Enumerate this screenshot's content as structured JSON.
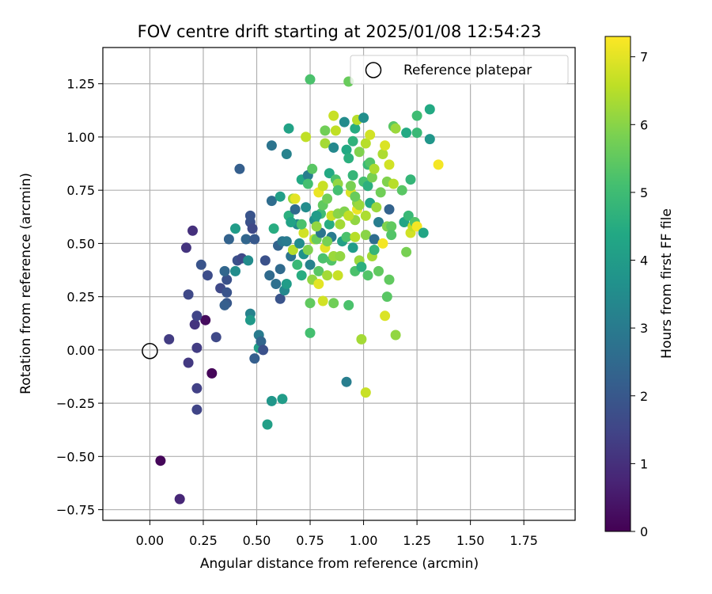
{
  "chart_data": {
    "type": "scatter",
    "title": "FOV centre drift starting at 2025/01/08 12:54:23",
    "xlabel": "Angular distance from reference (arcmin)",
    "ylabel": "Rotation from reference (arcmin)",
    "xlim": [
      -0.22,
      1.99
    ],
    "ylim": [
      -0.8,
      1.42
    ],
    "x_ticks": [
      "0.00",
      "0.25",
      "0.50",
      "0.75",
      "1.00",
      "1.25",
      "1.50",
      "1.75"
    ],
    "x_tick_values": [
      0,
      0.25,
      0.5,
      0.75,
      1.0,
      1.25,
      1.5,
      1.75
    ],
    "y_ticks": [
      "−0.75",
      "−0.50",
      "−0.25",
      "0.00",
      "0.25",
      "0.50",
      "0.75",
      "1.00",
      "1.25"
    ],
    "y_tick_values": [
      -0.75,
      -0.5,
      -0.25,
      0,
      0.25,
      0.5,
      0.75,
      1.0,
      1.25
    ],
    "grid": true,
    "legend": {
      "label": "Reference platepar",
      "placement": "top-right"
    },
    "reference": {
      "x": 0.0,
      "y": 0.0
    },
    "colorbar": {
      "label": "Hours from first FF file",
      "range": [
        0,
        7.3
      ],
      "ticks": [
        "0",
        "1",
        "2",
        "3",
        "4",
        "5",
        "6",
        "7"
      ],
      "tick_values": [
        0,
        1,
        2,
        3,
        4,
        5,
        6,
        7
      ],
      "colormap": "viridis"
    },
    "points": [
      [
        0.05,
        -0.52,
        0.1
      ],
      [
        0.14,
        -0.7,
        0.8
      ],
      [
        0.09,
        0.05,
        1.3
      ],
      [
        0.18,
        -0.06,
        1.2
      ],
      [
        0.22,
        -0.18,
        1.4
      ],
      [
        0.22,
        -0.28,
        1.5
      ],
      [
        0.22,
        0.01,
        1.3
      ],
      [
        0.21,
        0.12,
        1.1
      ],
      [
        0.26,
        0.14,
        0.2
      ],
      [
        0.29,
        -0.11,
        0.1
      ],
      [
        0.31,
        0.06,
        1.6
      ],
      [
        0.22,
        0.16,
        1.5
      ],
      [
        0.18,
        0.26,
        1.6
      ],
      [
        0.17,
        0.48,
        1.1
      ],
      [
        0.2,
        0.56,
        1.0
      ],
      [
        0.24,
        0.4,
        1.9
      ],
      [
        0.27,
        0.35,
        1.7
      ],
      [
        0.33,
        0.29,
        1.6
      ],
      [
        0.36,
        0.22,
        2.0
      ],
      [
        0.36,
        0.33,
        1.8
      ],
      [
        0.36,
        0.27,
        1.9
      ],
      [
        0.35,
        0.21,
        2.2
      ],
      [
        0.35,
        0.37,
        2.4
      ],
      [
        0.37,
        0.52,
        2.3
      ],
      [
        0.4,
        0.37,
        3.5
      ],
      [
        0.4,
        0.57,
        4.0
      ],
      [
        0.41,
        0.42,
        1.8
      ],
      [
        0.43,
        0.43,
        1.6
      ],
      [
        0.45,
        0.52,
        2.4
      ],
      [
        0.46,
        0.42,
        3.5
      ],
      [
        0.42,
        0.85,
        2.2
      ],
      [
        0.47,
        0.6,
        1.8
      ],
      [
        0.47,
        0.63,
        1.9
      ],
      [
        0.48,
        0.57,
        1.6
      ],
      [
        0.49,
        0.52,
        2.0
      ],
      [
        0.47,
        0.17,
        3.2
      ],
      [
        0.47,
        0.14,
        3.9
      ],
      [
        0.49,
        -0.04,
        2.2
      ],
      [
        0.51,
        0.07,
        3.0
      ],
      [
        0.51,
        0.01,
        4.1
      ],
      [
        0.52,
        0.04,
        2.4
      ],
      [
        0.53,
        0.0,
        1.8
      ],
      [
        0.54,
        0.42,
        1.8
      ],
      [
        0.56,
        0.35,
        2.5
      ],
      [
        0.57,
        0.7,
        2.6
      ],
      [
        0.57,
        0.96,
        2.8
      ],
      [
        0.58,
        0.57,
        4.5
      ],
      [
        0.59,
        0.31,
        2.7
      ],
      [
        0.6,
        0.49,
        2.3
      ],
      [
        0.61,
        0.38,
        2.5
      ],
      [
        0.61,
        0.72,
        4.1
      ],
      [
        0.61,
        0.24,
        1.9
      ],
      [
        0.62,
        0.51,
        2.9
      ],
      [
        0.63,
        0.28,
        3.4
      ],
      [
        0.64,
        0.31,
        4.0
      ],
      [
        0.64,
        0.51,
        3.0
      ],
      [
        0.64,
        0.92,
        3.2
      ],
      [
        0.65,
        1.04,
        4.2
      ],
      [
        0.65,
        0.63,
        4.6
      ],
      [
        0.66,
        0.44,
        2.8
      ],
      [
        0.67,
        0.47,
        6.5
      ],
      [
        0.67,
        0.71,
        6.2
      ],
      [
        0.68,
        0.66,
        2.5
      ],
      [
        0.68,
        0.71,
        7.0
      ],
      [
        0.69,
        0.59,
        3.4
      ],
      [
        0.7,
        0.5,
        3.5
      ],
      [
        0.71,
        0.8,
        4.4
      ],
      [
        0.71,
        0.35,
        4.5
      ],
      [
        0.72,
        0.55,
        6.8
      ],
      [
        0.73,
        1.0,
        6.6
      ],
      [
        0.72,
        0.45,
        3.7
      ],
      [
        0.73,
        0.67,
        3.5
      ],
      [
        0.74,
        0.82,
        3.1
      ],
      [
        0.74,
        0.78,
        5.1
      ],
      [
        0.75,
        0.4,
        3.2
      ],
      [
        0.75,
        0.22,
        5.5
      ],
      [
        0.75,
        0.08,
        5.1
      ],
      [
        0.75,
        1.27,
        5.2
      ],
      [
        0.76,
        0.33,
        6.1
      ],
      [
        0.76,
        0.85,
        5.4
      ],
      [
        0.77,
        0.61,
        3.6
      ],
      [
        0.77,
        0.52,
        6.6
      ],
      [
        0.78,
        0.52,
        5.6
      ],
      [
        0.79,
        0.37,
        5.4
      ],
      [
        0.79,
        0.31,
        7.0
      ],
      [
        0.79,
        0.74,
        7.1
      ],
      [
        0.8,
        0.64,
        5.0
      ],
      [
        0.8,
        0.55,
        2.8
      ],
      [
        0.81,
        0.68,
        5.5
      ],
      [
        0.81,
        0.77,
        6.7
      ],
      [
        0.81,
        0.43,
        5.2
      ],
      [
        0.81,
        0.23,
        6.8
      ],
      [
        0.82,
        0.97,
        6.3
      ],
      [
        0.82,
        1.03,
        5.7
      ],
      [
        0.82,
        0.48,
        7.0
      ],
      [
        0.83,
        0.35,
        6.3
      ],
      [
        0.83,
        0.71,
        5.7
      ],
      [
        0.84,
        0.59,
        4.5
      ],
      [
        0.84,
        0.83,
        4.4
      ],
      [
        0.85,
        0.63,
        6.7
      ],
      [
        0.85,
        0.53,
        3.0
      ],
      [
        0.85,
        0.42,
        5.3
      ],
      [
        0.86,
        0.44,
        6.2
      ],
      [
        0.86,
        0.95,
        3.4
      ],
      [
        0.86,
        1.1,
        6.7
      ],
      [
        0.86,
        0.22,
        5.7
      ],
      [
        0.87,
        0.8,
        5.2
      ],
      [
        0.87,
        1.03,
        6.6
      ],
      [
        0.88,
        0.35,
        6.7
      ],
      [
        0.88,
        0.64,
        6.0
      ],
      [
        0.88,
        0.78,
        6.1
      ],
      [
        0.89,
        0.59,
        6.3
      ],
      [
        0.9,
        0.51,
        4.1
      ],
      [
        0.91,
        1.07,
        3.5
      ],
      [
        0.91,
        0.65,
        5.9
      ],
      [
        0.92,
        0.53,
        5.2
      ],
      [
        0.92,
        0.94,
        4.4
      ],
      [
        0.92,
        -0.15,
        3.1
      ],
      [
        0.93,
        0.21,
        5.2
      ],
      [
        0.93,
        1.26,
        5.6
      ],
      [
        0.93,
        0.9,
        4.6
      ],
      [
        0.94,
        0.74,
        6.9
      ],
      [
        0.94,
        0.77,
        5.8
      ],
      [
        0.95,
        0.48,
        4.0
      ],
      [
        0.95,
        0.82,
        4.8
      ],
      [
        0.95,
        0.98,
        4.7
      ],
      [
        0.96,
        0.61,
        6.1
      ],
      [
        0.96,
        0.37,
        5.2
      ],
      [
        0.96,
        1.04,
        4.5
      ],
      [
        0.96,
        0.53,
        6.5
      ],
      [
        0.97,
        0.66,
        7.1
      ],
      [
        0.97,
        0.69,
        6.0
      ],
      [
        0.97,
        1.08,
        6.5
      ],
      [
        0.98,
        0.93,
        5.9
      ],
      [
        0.98,
        0.68,
        6.2
      ],
      [
        0.98,
        0.42,
        6.2
      ],
      [
        0.99,
        0.39,
        4.6
      ],
      [
        0.99,
        0.05,
        6.3
      ],
      [
        1.0,
        1.09,
        3.6
      ],
      [
        1.0,
        0.79,
        5.1
      ],
      [
        1.01,
        0.63,
        6.4
      ],
      [
        1.01,
        0.54,
        6.0
      ],
      [
        1.01,
        -0.2,
        6.7
      ],
      [
        1.01,
        0.97,
        6.5
      ],
      [
        1.02,
        0.77,
        4.6
      ],
      [
        1.02,
        0.87,
        4.9
      ],
      [
        1.02,
        0.35,
        5.3
      ],
      [
        1.03,
        1.01,
        6.8
      ],
      [
        1.03,
        0.88,
        5.3
      ],
      [
        1.03,
        0.69,
        4.3
      ],
      [
        1.04,
        0.44,
        6.3
      ],
      [
        1.04,
        0.81,
        5.8
      ],
      [
        1.05,
        0.47,
        4.8
      ],
      [
        1.05,
        0.52,
        2.6
      ],
      [
        1.05,
        0.85,
        6.4
      ],
      [
        1.06,
        0.67,
        6.2
      ],
      [
        1.07,
        0.6,
        3.1
      ],
      [
        1.07,
        0.37,
        5.5
      ],
      [
        1.09,
        0.92,
        6.4
      ],
      [
        1.09,
        0.5,
        7.2
      ],
      [
        1.1,
        0.96,
        6.9
      ],
      [
        1.1,
        0.16,
        6.9
      ],
      [
        1.11,
        0.79,
        5.9
      ],
      [
        1.11,
        0.58,
        5.9
      ],
      [
        1.11,
        0.25,
        5.4
      ],
      [
        1.12,
        0.33,
        5.5
      ],
      [
        1.12,
        0.66,
        2.3
      ],
      [
        1.12,
        0.87,
        6.8
      ],
      [
        1.13,
        0.58,
        5.5
      ],
      [
        1.13,
        0.54,
        5.3
      ],
      [
        1.14,
        1.05,
        5.4
      ],
      [
        1.14,
        0.78,
        6.5
      ],
      [
        1.15,
        1.04,
        6.2
      ],
      [
        1.15,
        0.07,
        6.1
      ],
      [
        1.18,
        0.75,
        5.4
      ],
      [
        1.19,
        0.6,
        4.3
      ],
      [
        1.2,
        1.02,
        4.4
      ],
      [
        1.2,
        0.46,
        5.8
      ],
      [
        1.21,
        0.63,
        4.9
      ],
      [
        1.22,
        0.55,
        6.8
      ],
      [
        1.22,
        0.8,
        4.8
      ],
      [
        1.23,
        0.58,
        6.6
      ],
      [
        1.24,
        0.6,
        5.3
      ],
      [
        1.25,
        1.1,
        5.0
      ],
      [
        1.25,
        1.02,
        4.9
      ],
      [
        1.25,
        0.58,
        7.2
      ],
      [
        1.28,
        0.55,
        4.3
      ],
      [
        1.31,
        1.13,
        4.4
      ],
      [
        1.31,
        0.99,
        3.8
      ],
      [
        1.35,
        0.87,
        7.2
      ],
      [
        0.88,
        0.75,
        5.1
      ],
      [
        0.78,
        0.58,
        6.1
      ],
      [
        0.83,
        0.51,
        5.8
      ],
      [
        0.69,
        0.4,
        4.9
      ],
      [
        0.96,
        0.72,
        5.6
      ],
      [
        0.74,
        0.47,
        5.9
      ],
      [
        0.89,
        0.44,
        6.1
      ],
      [
        0.66,
        0.6,
        4.2
      ],
      [
        1.08,
        0.74,
        5.7
      ],
      [
        0.57,
        -0.24,
        3.8
      ],
      [
        0.62,
        -0.23,
        4.0
      ],
      [
        0.55,
        -0.35,
        4.1
      ],
      [
        0.78,
        0.63,
        4.0
      ],
      [
        0.93,
        0.63,
        6.6
      ],
      [
        0.71,
        0.59,
        5.2
      ]
    ]
  }
}
